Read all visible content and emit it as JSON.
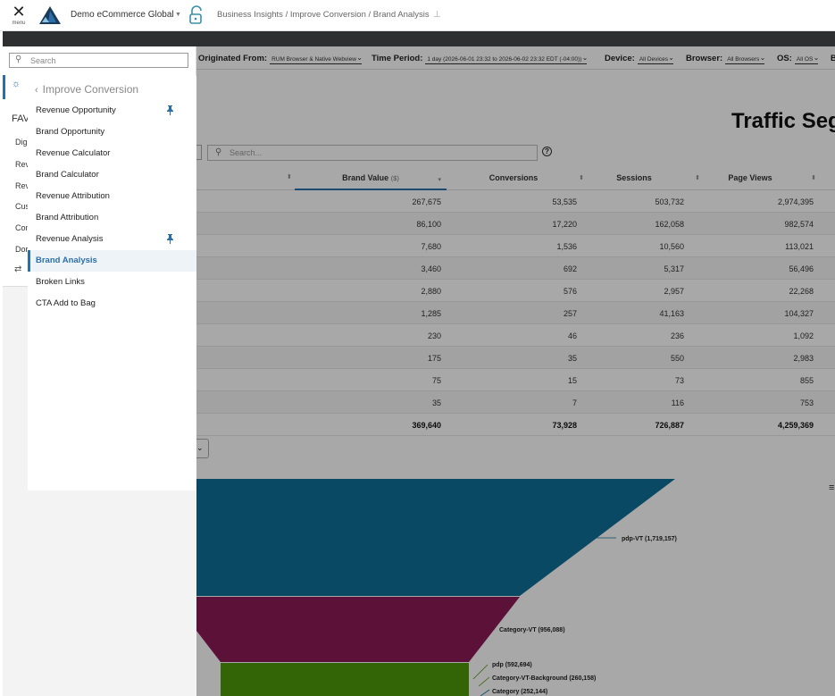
{
  "header": {
    "menu_label": "menu",
    "app_title": "Demo eCommerce Global",
    "breadcrumb": "Business Insights / Improve Conversion / Brand Analysis"
  },
  "filters": [
    {
      "key": "Originated From:",
      "value": "RUM Browser & Native Webview"
    },
    {
      "key": "Time Period:",
      "value": "1 day (2026-06-01 23:32 to 2026-06-02 23:32 EDT (-04:00))"
    },
    {
      "key": "Device:",
      "value": "All Devices"
    },
    {
      "key": "Browser:",
      "value": "All Browsers"
    },
    {
      "key": "OS:",
      "value": "All OS"
    },
    {
      "key": "B",
      "value": ""
    }
  ],
  "main": {
    "title": "Traffic Seg",
    "search_placeholder": "Search...",
    "help_glyph": "?"
  },
  "table": {
    "columns": [
      {
        "label": "Brand Value",
        "unit": "($)"
      },
      {
        "label": "Conversions",
        "unit": ""
      },
      {
        "label": "Sessions",
        "unit": ""
      },
      {
        "label": "Page Views",
        "unit": ""
      }
    ],
    "rows": [
      [
        "267,675",
        "53,535",
        "503,732",
        "2,974,395"
      ],
      [
        "86,100",
        "17,220",
        "162,058",
        "982,574"
      ],
      [
        "7,680",
        "1,536",
        "10,560",
        "113,021"
      ],
      [
        "3,460",
        "692",
        "5,317",
        "56,496"
      ],
      [
        "2,880",
        "576",
        "2,957",
        "22,268"
      ],
      [
        "1,285",
        "257",
        "41,163",
        "104,327"
      ],
      [
        "230",
        "46",
        "236",
        "1,092"
      ],
      [
        "175",
        "35",
        "550",
        "2,983"
      ],
      [
        "75",
        "15",
        "73",
        "855"
      ],
      [
        "35",
        "7",
        "116",
        "753"
      ]
    ],
    "totals": [
      "369,640",
      "73,928",
      "726,887",
      "4,259,369"
    ]
  },
  "chart_data": {
    "type": "funnel",
    "series": [
      {
        "name": "pdp-VT",
        "label": "pdp-VT (1,719,157)",
        "value": 1719157,
        "color": "#0f6f97"
      },
      {
        "name": "Category-VT",
        "label": "Category-VT (956,088)",
        "value": 956088,
        "color": "#8b1a55"
      },
      {
        "name": "pdp",
        "label": "pdp (592,694)",
        "value": 592694,
        "color": "#4e9a0c"
      },
      {
        "name": "Category-VT-Background",
        "label": "Category-VT-Background (260,158)",
        "value": 260158,
        "color": "#4e9a0c"
      },
      {
        "name": "Category",
        "label": "Category (252,144)",
        "value": 252144,
        "color": "#0f6f97"
      }
    ]
  },
  "nav": {
    "search_placeholder": "Search",
    "favorites_label": "FAV",
    "rail_fragments": [
      "Digi",
      "Rev",
      "Rev",
      "Cus",
      "Con",
      "Dor"
    ],
    "flyout_title": "Improve Conversion",
    "items": [
      {
        "label": "Revenue Opportunity",
        "pinned": true,
        "active": false
      },
      {
        "label": "Brand Opportunity",
        "pinned": false,
        "active": false
      },
      {
        "label": "Revenue Calculator",
        "pinned": false,
        "active": false
      },
      {
        "label": "Brand Calculator",
        "pinned": false,
        "active": false
      },
      {
        "label": "Revenue Attribution",
        "pinned": false,
        "active": false
      },
      {
        "label": "Brand Attribution",
        "pinned": false,
        "active": false
      },
      {
        "label": "Revenue Analysis",
        "pinned": true,
        "active": false
      },
      {
        "label": "Brand Analysis",
        "pinned": false,
        "active": true
      },
      {
        "label": "Broken Links",
        "pinned": false,
        "active": false
      },
      {
        "label": "CTA Add to Bag",
        "pinned": false,
        "active": false
      }
    ]
  },
  "colors": {
    "accent": "#2b6fa8",
    "dark_bar": "#2d2f31"
  }
}
